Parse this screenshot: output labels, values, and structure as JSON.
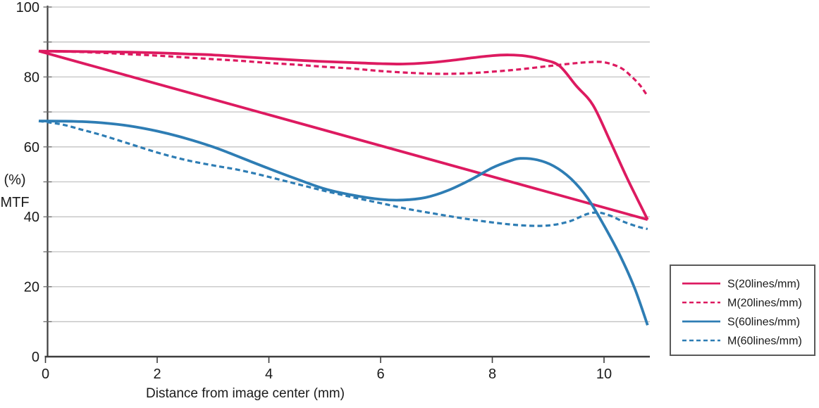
{
  "chart_data": {
    "type": "line",
    "title": "",
    "xlabel": "Distance from image center (mm)",
    "ylabel_lines": [
      "(%)",
      "MTF"
    ],
    "xlim": [
      0,
      10.8
    ],
    "ylim": [
      0,
      100
    ],
    "x_ticks": [
      0,
      2,
      4,
      6,
      8,
      10
    ],
    "y_ticks": [
      0,
      20,
      40,
      60,
      80,
      100
    ],
    "grid_step": 10,
    "grid": true,
    "legend_position": "right-bottom",
    "legend": [
      "S(20lines/mm)",
      "M(20lines/mm)",
      "S(60lines/mm)",
      "M(60lines/mm)"
    ],
    "colors": {
      "pink": "#dd1a60",
      "blue": "#2e7db4",
      "gridline": "#c3c3c3",
      "axis": "#3d3d3d",
      "legend_border": "#595959"
    },
    "series": [
      {
        "name": "S(20lines/mm)",
        "color": "#dd1a60",
        "dash": "solid",
        "in_legend": true,
        "points": [
          [
            -0.12,
            87.4
          ],
          [
            0.5,
            87.3
          ],
          [
            1,
            87.2
          ],
          [
            1.5,
            87.1
          ],
          [
            2,
            86.9
          ],
          [
            2.5,
            86.6
          ],
          [
            3,
            86.3
          ],
          [
            3.5,
            85.8
          ],
          [
            4,
            85.3
          ],
          [
            4.5,
            84.8
          ],
          [
            5,
            84.4
          ],
          [
            5.5,
            84.1
          ],
          [
            6,
            83.8
          ],
          [
            6.4,
            83.7
          ],
          [
            6.8,
            84.0
          ],
          [
            7.2,
            84.6
          ],
          [
            7.6,
            85.4
          ],
          [
            8,
            86.1
          ],
          [
            8.3,
            86.3
          ],
          [
            8.6,
            86.0
          ],
          [
            8.9,
            85.0
          ],
          [
            9.2,
            83.2
          ],
          [
            9.5,
            77.5
          ],
          [
            9.8,
            72.0
          ],
          [
            10.1,
            62.0
          ],
          [
            10.4,
            51.5
          ],
          [
            10.6,
            45.0
          ],
          [
            10.78,
            39.2
          ]
        ]
      },
      {
        "name": "M(20lines/mm)",
        "color": "#dd1a60",
        "dash": "dashed",
        "in_legend": true,
        "points": [
          [
            -0.12,
            87.4
          ],
          [
            0.5,
            87.2
          ],
          [
            1,
            86.9
          ],
          [
            1.5,
            86.5
          ],
          [
            2,
            86.1
          ],
          [
            2.5,
            85.6
          ],
          [
            3,
            85.1
          ],
          [
            3.5,
            84.6
          ],
          [
            4,
            84.0
          ],
          [
            4.5,
            83.5
          ],
          [
            5,
            82.9
          ],
          [
            5.5,
            82.4
          ],
          [
            6,
            81.7
          ],
          [
            6.5,
            81.2
          ],
          [
            7,
            80.9
          ],
          [
            7.5,
            81.0
          ],
          [
            8,
            81.5
          ],
          [
            8.5,
            82.2
          ],
          [
            9,
            83.1
          ],
          [
            9.4,
            83.8
          ],
          [
            9.7,
            84.2
          ],
          [
            10,
            84.2
          ],
          [
            10.3,
            82.6
          ],
          [
            10.5,
            80.0
          ],
          [
            10.65,
            77.5
          ],
          [
            10.78,
            74.5
          ]
        ]
      },
      {
        "name": "S(20lines/mm) straight reference line (unlabeled)",
        "color": "#dd1a60",
        "dash": "solid",
        "in_legend": false,
        "points": [
          [
            -0.12,
            87.4
          ],
          [
            10.78,
            39.2
          ]
        ]
      },
      {
        "name": "S(60lines/mm)",
        "color": "#2e7db4",
        "dash": "solid",
        "in_legend": true,
        "points": [
          [
            -0.12,
            67.4
          ],
          [
            0.5,
            67.3
          ],
          [
            1,
            66.9
          ],
          [
            1.5,
            66.0
          ],
          [
            2,
            64.5
          ],
          [
            2.5,
            62.5
          ],
          [
            3,
            60.0
          ],
          [
            3.3,
            58.2
          ],
          [
            3.6,
            56.3
          ],
          [
            4,
            53.8
          ],
          [
            4.5,
            50.8
          ],
          [
            5,
            48.0
          ],
          [
            5.5,
            46.2
          ],
          [
            6,
            45.0
          ],
          [
            6.4,
            44.8
          ],
          [
            6.8,
            45.5
          ],
          [
            7.2,
            47.5
          ],
          [
            7.6,
            50.5
          ],
          [
            8,
            54.0
          ],
          [
            8.3,
            55.9
          ],
          [
            8.5,
            56.7
          ],
          [
            8.8,
            56.3
          ],
          [
            9.1,
            54.5
          ],
          [
            9.4,
            51.0
          ],
          [
            9.7,
            45.5
          ],
          [
            10,
            37.5
          ],
          [
            10.3,
            28.5
          ],
          [
            10.55,
            19.5
          ],
          [
            10.78,
            9.0
          ]
        ]
      },
      {
        "name": "M(60lines/mm)",
        "color": "#2e7db4",
        "dash": "dashed",
        "in_legend": true,
        "points": [
          [
            -0.12,
            67.4
          ],
          [
            0.3,
            66.4
          ],
          [
            0.7,
            64.7
          ],
          [
            1,
            63.4
          ],
          [
            1.5,
            60.9
          ],
          [
            2,
            58.4
          ],
          [
            2.5,
            56.3
          ],
          [
            3,
            54.7
          ],
          [
            3.4,
            53.6
          ],
          [
            3.8,
            52.2
          ],
          [
            4.2,
            50.6
          ],
          [
            4.6,
            49.0
          ],
          [
            5,
            47.4
          ],
          [
            5.5,
            45.6
          ],
          [
            6,
            43.9
          ],
          [
            6.5,
            42.2
          ],
          [
            7,
            40.8
          ],
          [
            7.5,
            39.5
          ],
          [
            8,
            38.4
          ],
          [
            8.4,
            37.7
          ],
          [
            8.8,
            37.4
          ],
          [
            9.1,
            37.7
          ],
          [
            9.4,
            38.8
          ],
          [
            9.7,
            40.8
          ],
          [
            9.9,
            41.2
          ],
          [
            10.1,
            40.4
          ],
          [
            10.35,
            38.6
          ],
          [
            10.6,
            37.2
          ],
          [
            10.78,
            36.5
          ]
        ]
      }
    ]
  }
}
